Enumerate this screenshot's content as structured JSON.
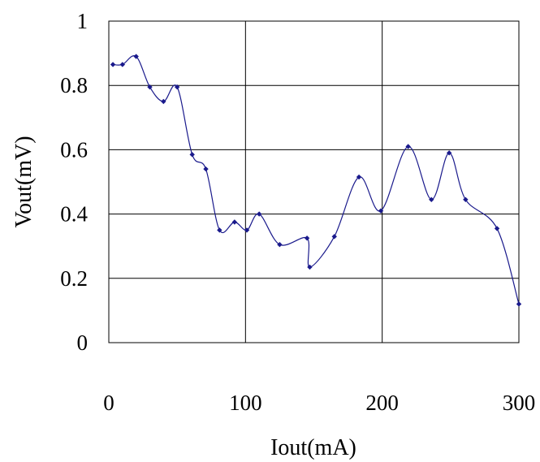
{
  "chart_data": {
    "type": "line",
    "title": "",
    "xlabel": "Iout(mA)",
    "ylabel": "Vout(mV)",
    "xlim": [
      0,
      300
    ],
    "ylim": [
      0,
      1
    ],
    "grid": true,
    "smooth": true,
    "x_ticks": [
      "0",
      "100",
      "200",
      "300"
    ],
    "y_ticks": [
      "0",
      "0.2",
      "0.4",
      "0.6",
      "0.8",
      "1"
    ],
    "colors": {
      "series": "#1a1a8c",
      "grid": "#000000"
    },
    "series": [
      {
        "points": [
          [
            3,
            0.865
          ],
          [
            10,
            0.865
          ],
          [
            20,
            0.89
          ],
          [
            30,
            0.795
          ],
          [
            40,
            0.75
          ],
          [
            50,
            0.795
          ],
          [
            61,
            0.585
          ],
          [
            71,
            0.54
          ],
          [
            81,
            0.35
          ],
          [
            92,
            0.375
          ],
          [
            101,
            0.35
          ],
          [
            110,
            0.4
          ],
          [
            125,
            0.305
          ],
          [
            145,
            0.325
          ],
          [
            147,
            0.235
          ],
          [
            165,
            0.33
          ],
          [
            183,
            0.515
          ],
          [
            199,
            0.41
          ],
          [
            219,
            0.61
          ],
          [
            236,
            0.445
          ],
          [
            249,
            0.59
          ],
          [
            261,
            0.445
          ],
          [
            284,
            0.355
          ],
          [
            300,
            0.12
          ]
        ]
      }
    ]
  }
}
